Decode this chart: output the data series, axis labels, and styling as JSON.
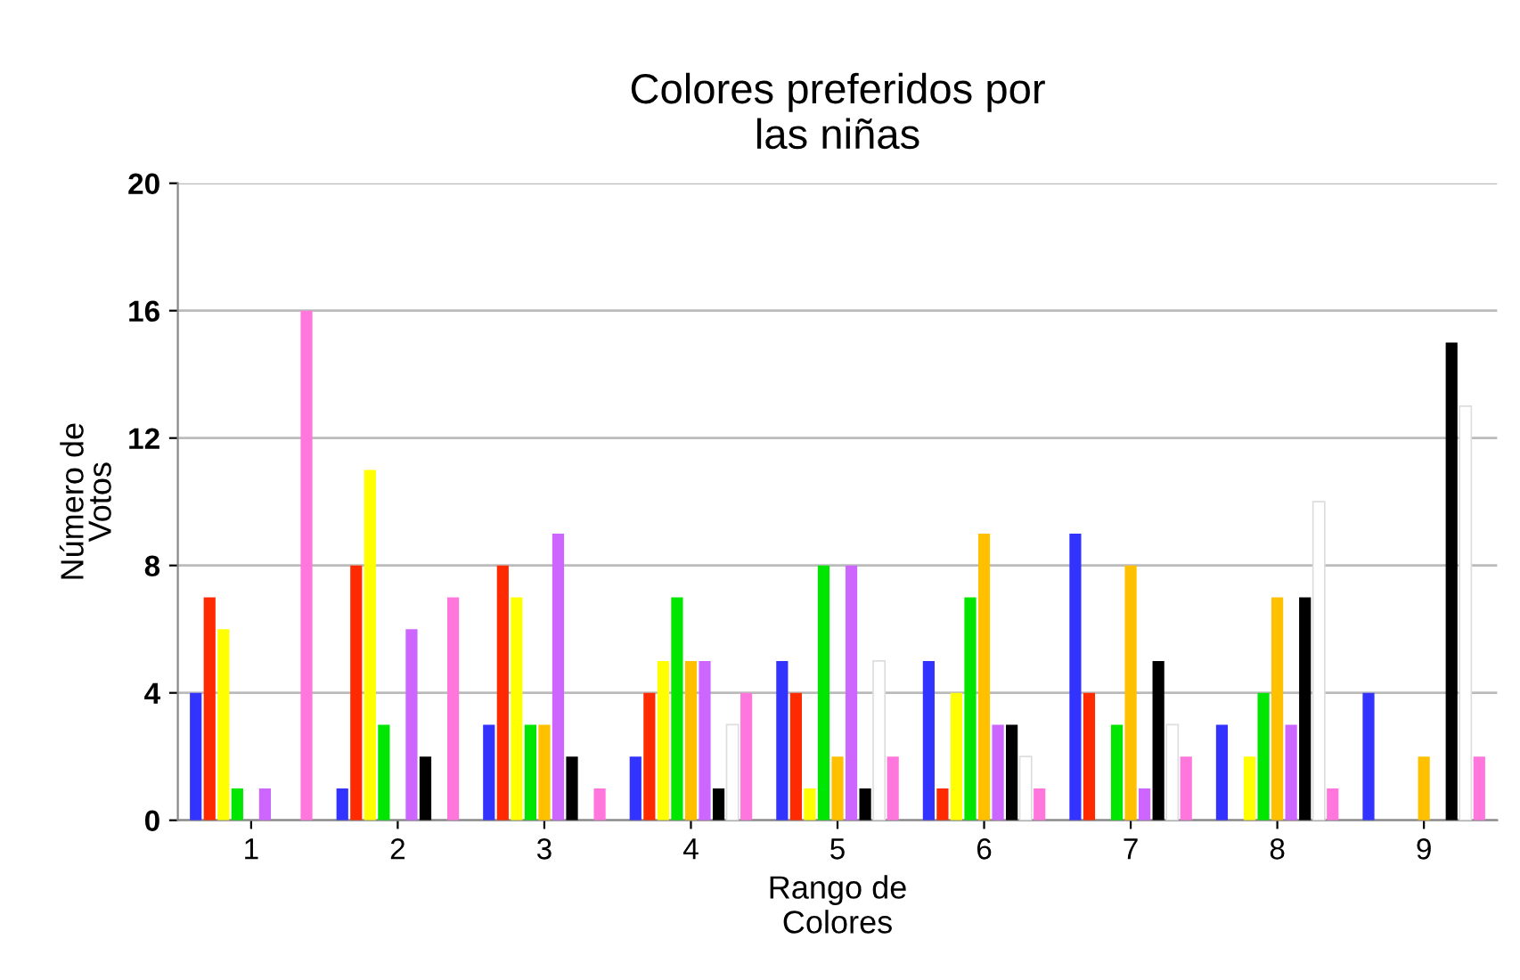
{
  "chart_data": {
    "type": "bar",
    "title": "Colores preferidos por\nlas niñas",
    "xlabel": "Rango de\nColores",
    "ylabel": "Número de\nVotos",
    "categories": [
      "1",
      "2",
      "3",
      "4",
      "5",
      "6",
      "7",
      "8",
      "9"
    ],
    "series": [
      {
        "color": "#3333ff",
        "values": [
          4,
          1,
          3,
          2,
          5,
          5,
          9,
          3,
          4
        ]
      },
      {
        "color": "#ff2a00",
        "values": [
          7,
          8,
          8,
          4,
          4,
          1,
          4,
          0,
          0
        ]
      },
      {
        "color": "#ffff00",
        "values": [
          6,
          11,
          7,
          5,
          1,
          4,
          0,
          2,
          0
        ]
      },
      {
        "color": "#00e600",
        "values": [
          1,
          3,
          3,
          7,
          8,
          7,
          3,
          4,
          0
        ]
      },
      {
        "color": "#ffc000",
        "values": [
          0,
          0,
          3,
          5,
          2,
          9,
          8,
          7,
          2
        ]
      },
      {
        "color": "#cc66ff",
        "values": [
          1,
          6,
          9,
          5,
          8,
          3,
          1,
          3,
          0
        ]
      },
      {
        "color": "#000000",
        "values": [
          0,
          2,
          2,
          1,
          1,
          3,
          5,
          7,
          15
        ]
      },
      {
        "color": "#ffffff",
        "values": [
          0,
          0,
          0,
          3,
          5,
          2,
          3,
          10,
          13
        ]
      },
      {
        "color": "#ff77dd",
        "values": [
          16,
          7,
          1,
          4,
          2,
          1,
          2,
          1,
          2
        ]
      }
    ],
    "ylim": [
      0,
      20
    ],
    "yticks": [
      0,
      4,
      8,
      12,
      16,
      20
    ],
    "grid": "y",
    "legend": false
  }
}
